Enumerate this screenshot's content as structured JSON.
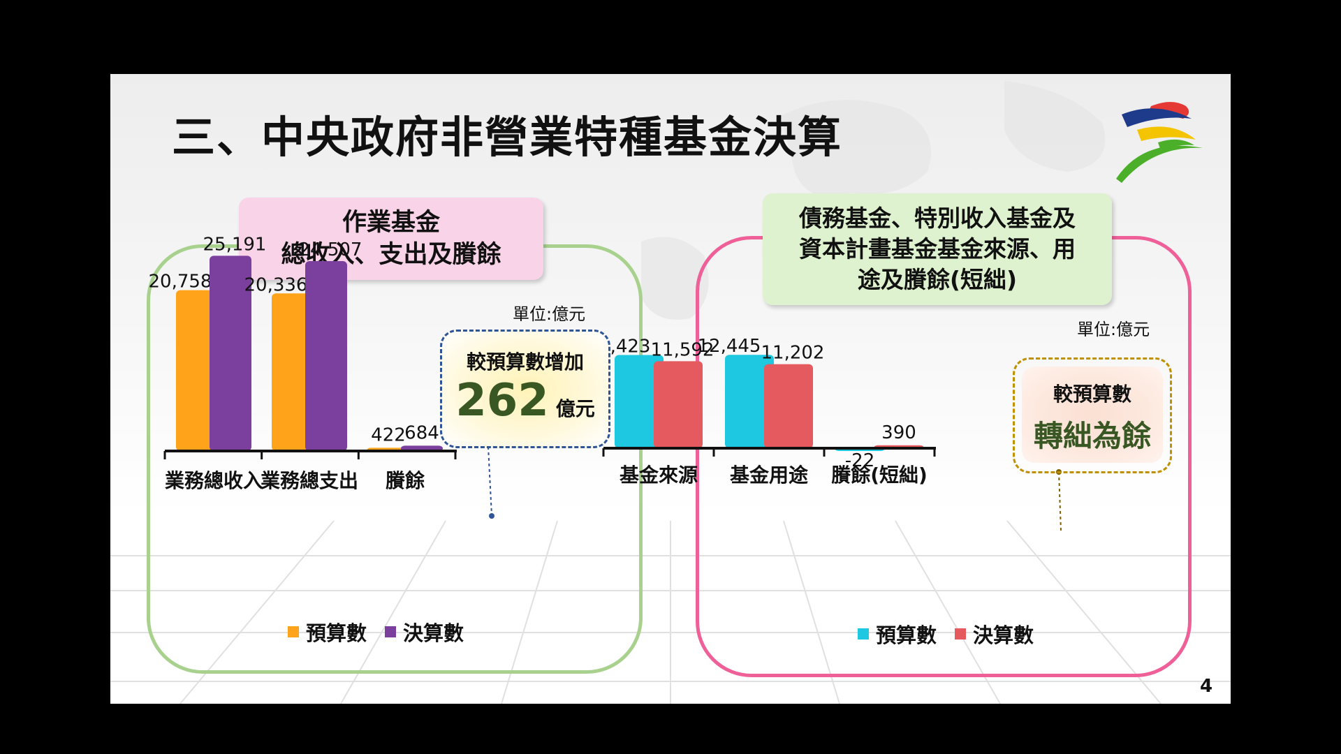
{
  "slide": {
    "title": "三、中央政府非營業特種基金決算",
    "page_number": "4"
  },
  "left_panel": {
    "title_line1": "作業基金",
    "title_line2": "總收入、支出及賸餘",
    "unit": "單位:億元",
    "callout": {
      "line1": "較預算數增加",
      "value": "262",
      "unit": "億元"
    }
  },
  "right_panel": {
    "title_line1": "債務基金、特別收入基金及",
    "title_line2": "資本計畫基金基金來源、用",
    "title_line3": "途及賸餘(短絀)",
    "unit": "單位:億元",
    "callout": {
      "line1": "較預算數",
      "line2": "轉絀為餘"
    }
  },
  "colors": {
    "left_budget": "#ffa31a",
    "left_actual": "#7b3f9e",
    "right_budget": "#1ec8e0",
    "right_actual": "#e55a5f",
    "left_border": "#a9d18e",
    "right_border": "#ef5f98"
  },
  "chart_data": [
    {
      "type": "bar",
      "categories": [
        "業務總收入",
        "業務總支出",
        "賸餘"
      ],
      "series": [
        {
          "name": "預算數",
          "values": [
            20758,
            20336,
            422
          ]
        },
        {
          "name": "決算數",
          "values": [
            25191,
            24507,
            684
          ]
        }
      ],
      "value_labels": [
        [
          "20,758",
          "20,336",
          "422"
        ],
        [
          "25,191",
          "24,507",
          "684"
        ]
      ],
      "legend": "bottom"
    },
    {
      "type": "bar",
      "categories": [
        "基金來源",
        "基金用途",
        "賸餘(短絀)"
      ],
      "series": [
        {
          "name": "預算數",
          "values": [
            12423,
            12445,
            -22
          ]
        },
        {
          "name": "決算數",
          "values": [
            11592,
            11202,
            390
          ]
        }
      ],
      "value_labels": [
        [
          "12,423",
          "12,445",
          "-22"
        ],
        [
          "11,592",
          "11,202",
          "390"
        ]
      ],
      "legend": "bottom"
    }
  ]
}
